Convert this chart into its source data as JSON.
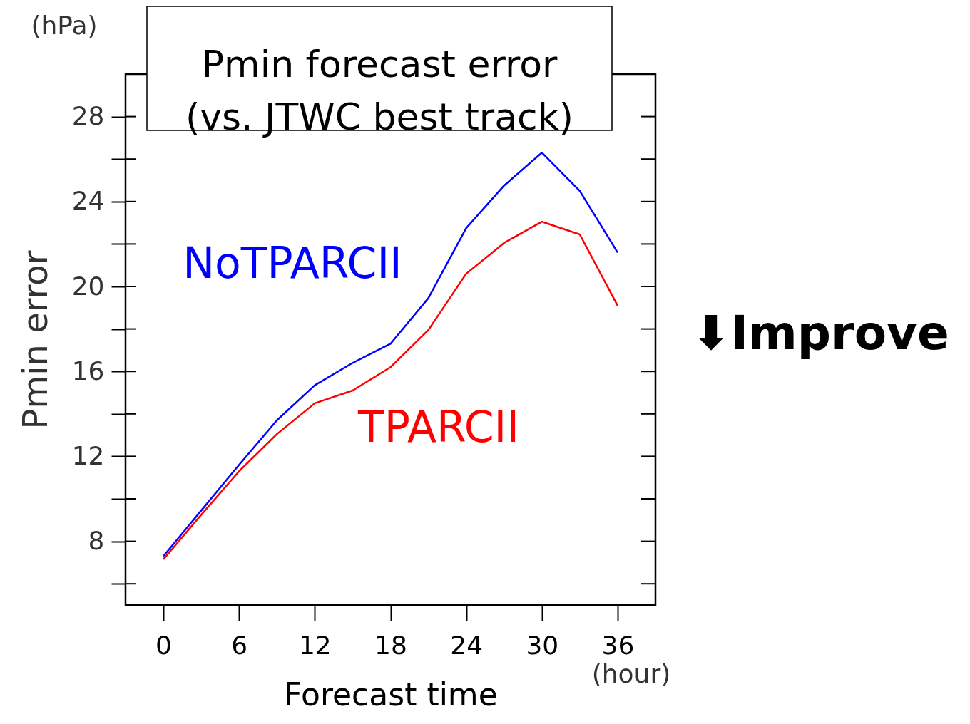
{
  "chart_data": {
    "type": "line",
    "title": "Pmin forecast error\n(vs. JTWC best track)",
    "xlabel": "Forecast time",
    "ylabel": "Pmin error",
    "x": [
      0,
      3,
      6,
      9,
      12,
      15,
      18,
      21,
      24,
      27,
      30,
      33,
      36
    ],
    "series": [
      {
        "name": "NoTPARCII",
        "color": "#0000ff",
        "values": [
          7.3,
          9.45,
          11.6,
          13.7,
          15.35,
          16.4,
          17.3,
          19.45,
          22.75,
          24.75,
          26.3,
          24.5,
          21.6
        ]
      },
      {
        "name": "TPARCII",
        "color": "#ff0000",
        "values": [
          7.15,
          9.25,
          11.3,
          13.05,
          14.5,
          15.1,
          16.2,
          17.95,
          20.6,
          22.05,
          23.05,
          22.45,
          19.1
        ]
      }
    ],
    "xlim": [
      -3,
      39
    ],
    "xticks": [
      0,
      6,
      12,
      18,
      24,
      30,
      36
    ],
    "ylim": [
      5,
      30
    ],
    "yticks": [
      {
        "value": 6,
        "label": null
      },
      8,
      {
        "value": 10,
        "label": null
      },
      12,
      {
        "value": 14,
        "label": null
      },
      16,
      {
        "value": 18,
        "label": null
      },
      20,
      {
        "value": 22,
        "label": null
      },
      24,
      {
        "value": 26,
        "label": null
      },
      28
    ],
    "annotations": [
      "(hPa)",
      "(hour)",
      "⬇Improve"
    ],
    "grid": false,
    "legend": false,
    "marker": "none",
    "line_style": "solid"
  }
}
